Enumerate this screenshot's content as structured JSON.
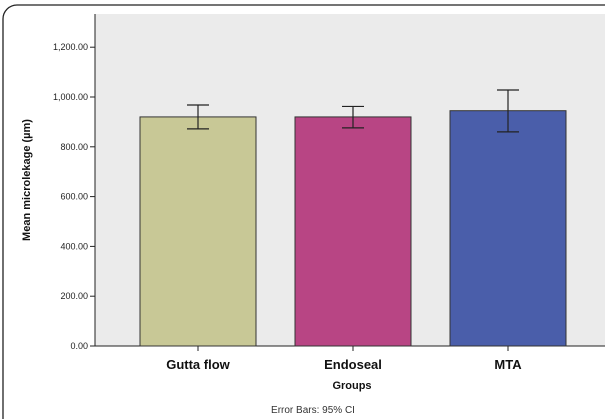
{
  "chart_data": {
    "type": "bar",
    "categories": [
      "Gutta flow",
      "Endoseal",
      "MTA"
    ],
    "values": [
      920,
      920,
      945
    ],
    "error_low": [
      872,
      876,
      860
    ],
    "error_high": [
      968,
      962,
      1028
    ],
    "bar_colors": [
      "#c8c896",
      "#b84584",
      "#4a5eaa"
    ],
    "xlabel": "Groups",
    "ylabel": "Mean microlekage (µm)",
    "yticks": [
      0,
      200,
      400,
      600,
      800,
      1000,
      1200
    ],
    "ytick_labels": [
      "0.00",
      "200.00",
      "400.00",
      "600.00",
      "800.00",
      "1,000.00",
      "1,200.00"
    ],
    "ylim": [
      0,
      1330
    ],
    "grid": false,
    "plot_background": "#ebebeb",
    "footnote": "Error Bars: 95% CI"
  }
}
